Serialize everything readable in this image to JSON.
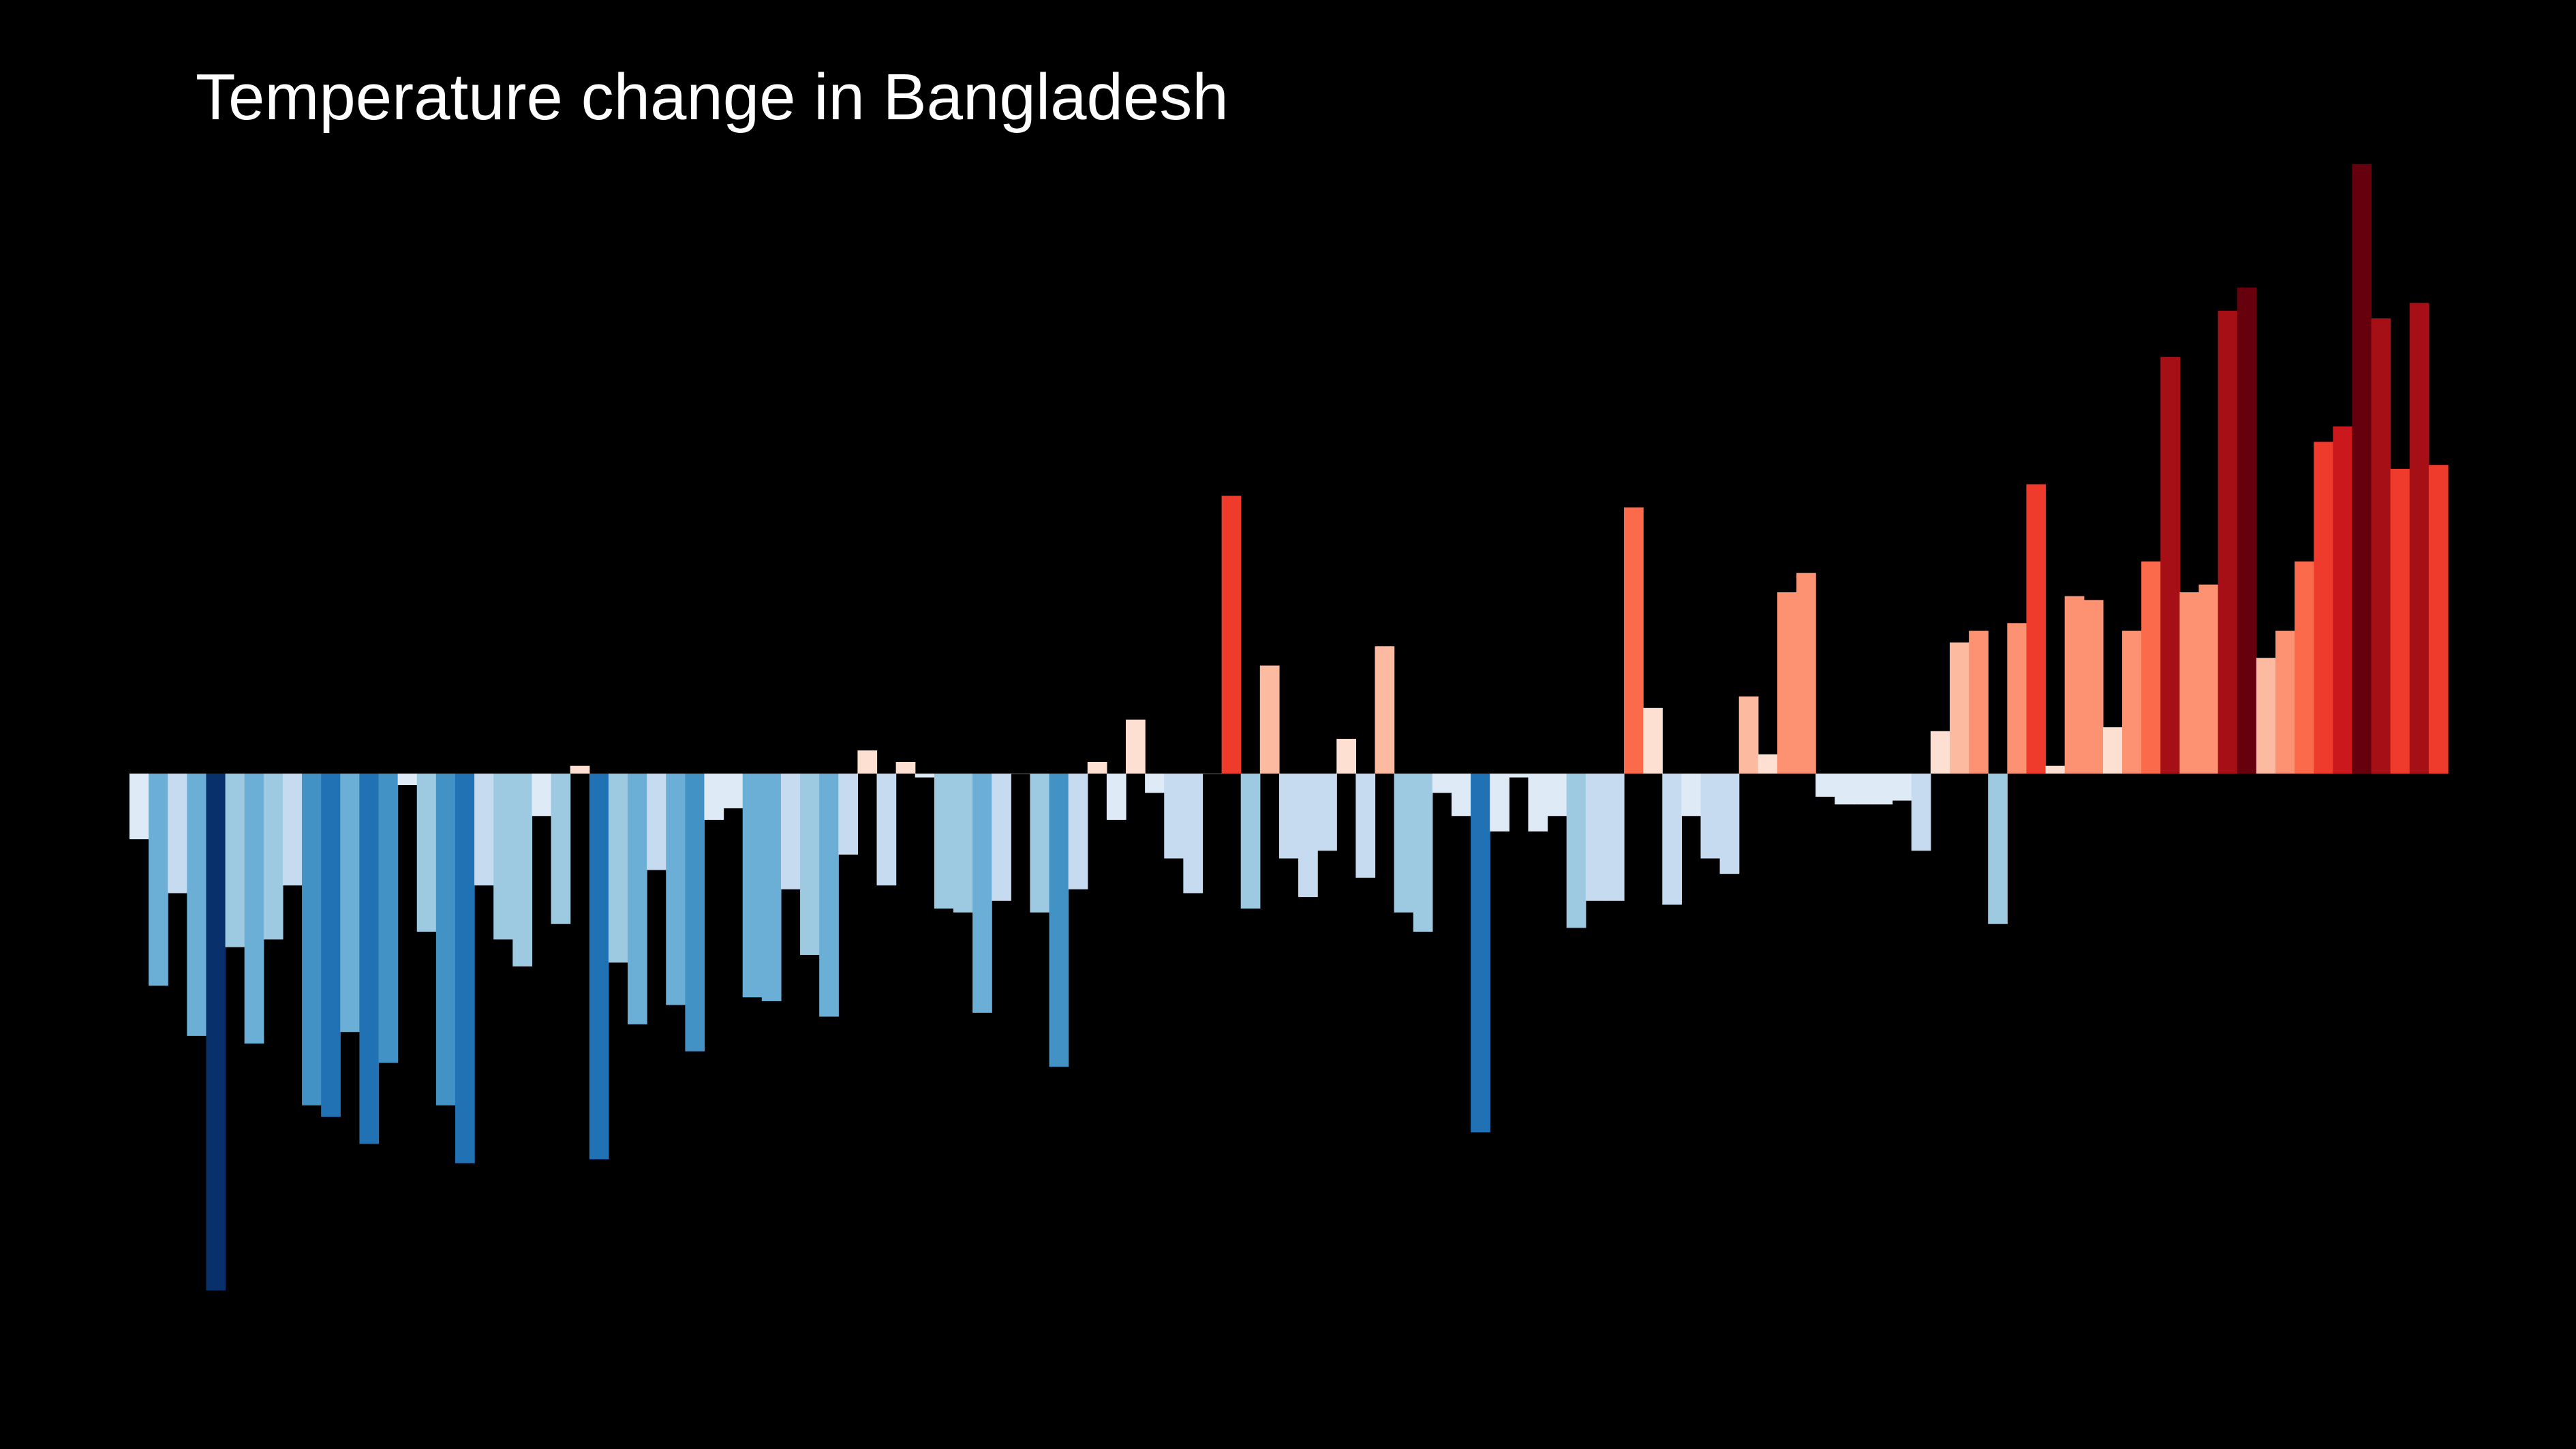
{
  "chart_data": {
    "type": "bar",
    "title": "Temperature change in Bangladesh",
    "xlabel": "",
    "ylabel": "",
    "axes_visible": false,
    "grid": false,
    "background": "#000000",
    "ylim": [
      -1.34,
      1.58
    ],
    "colormap": [
      "#08306b",
      "#08519c",
      "#2171b5",
      "#4292c6",
      "#6baed6",
      "#9ecae1",
      "#c6dbef",
      "#deebf7",
      "#fee0d2",
      "#fcbba1",
      "#fc9272",
      "#fb6a4a",
      "#ef3b2c",
      "#cb181d",
      "#a50f15",
      "#67000d"
    ],
    "values": [
      -0.17,
      -0.55,
      -0.31,
      -0.68,
      -1.34,
      -0.45,
      -0.7,
      -0.43,
      -0.29,
      -0.86,
      -0.89,
      -0.67,
      -0.96,
      -0.75,
      -0.03,
      -0.41,
      -0.86,
      -1.01,
      -0.29,
      -0.43,
      -0.5,
      -0.11,
      -0.39,
      0.02,
      -1.0,
      -0.49,
      -0.65,
      -0.25,
      -0.6,
      -0.72,
      -0.12,
      -0.09,
      -0.58,
      -0.59,
      -0.3,
      -0.47,
      -0.63,
      -0.21,
      0.06,
      -0.29,
      0.03,
      -0.01,
      -0.35,
      -0.36,
      -0.62,
      -0.33,
      0.0,
      -0.36,
      -0.76,
      -0.3,
      0.03,
      -0.12,
      0.14,
      -0.05,
      -0.22,
      -0.31,
      0.0,
      0.72,
      -0.35,
      0.28,
      -0.22,
      -0.32,
      -0.2,
      0.09,
      -0.27,
      0.33,
      -0.36,
      -0.41,
      -0.05,
      -0.11,
      -0.93,
      -0.15,
      -0.01,
      -0.15,
      -0.11,
      -0.4,
      -0.33,
      -0.33,
      0.69,
      0.17,
      -0.34,
      -0.11,
      -0.22,
      -0.26,
      0.2,
      0.05,
      0.47,
      0.52,
      -0.06,
      -0.08,
      -0.08,
      -0.08,
      -0.07,
      -0.2,
      0.11,
      0.34,
      0.37,
      -0.39,
      0.39,
      0.75,
      0.02,
      0.46,
      0.45,
      0.12,
      0.37,
      0.55,
      1.08,
      0.47,
      0.49,
      1.2,
      1.26,
      0.3,
      0.37,
      0.55,
      0.86,
      0.9,
      1.58,
      1.18,
      0.79,
      1.22,
      0.8
    ]
  }
}
